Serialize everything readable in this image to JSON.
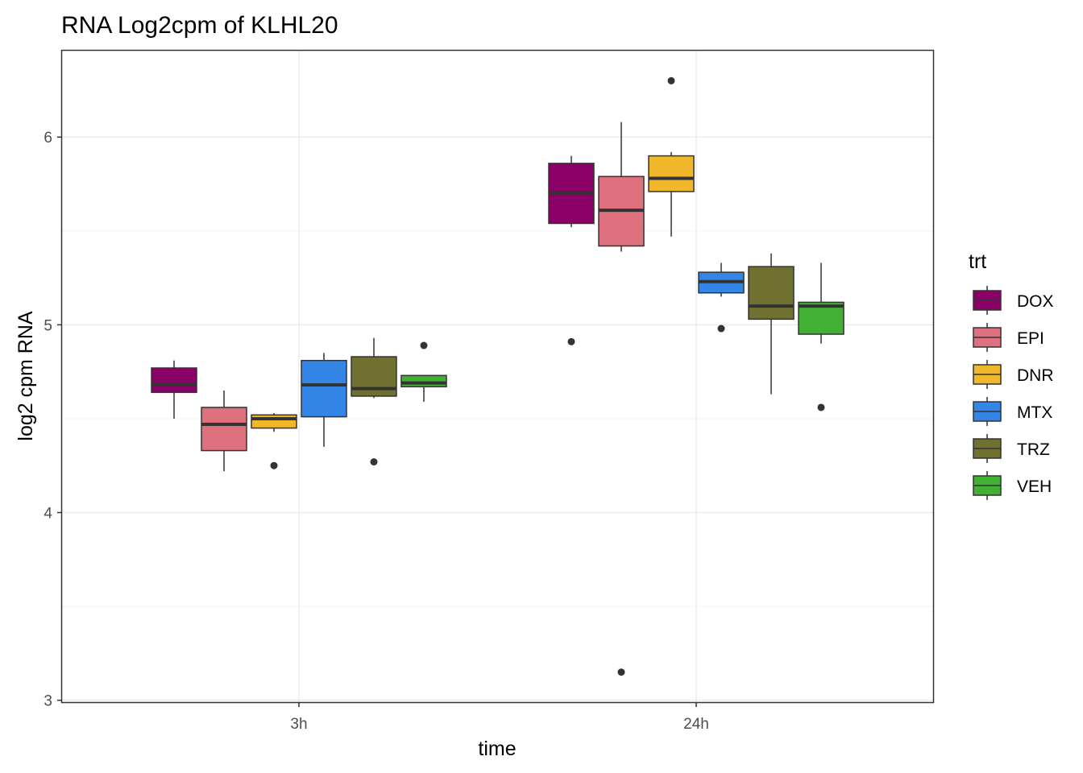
{
  "chart_data": {
    "type": "boxplot",
    "title": "RNA Log2cpm of KLHL20",
    "xlabel": "time",
    "ylabel": "log2 cpm RNA",
    "ylim": [
      2.99,
      6.46
    ],
    "yticks": [
      3,
      4,
      5,
      6
    ],
    "ytick_labels": [
      "3",
      "4",
      "5",
      "6"
    ],
    "categories": [
      "3h",
      "24h"
    ],
    "grid": true,
    "legend": {
      "title": "trt",
      "position": "right"
    },
    "series": [
      {
        "name": "DOX",
        "color": "#8B0066",
        "boxes": [
          {
            "category": "3h",
            "whisker_low": 4.5,
            "q1": 4.64,
            "median": 4.68,
            "q3": 4.77,
            "whisker_high": 4.81,
            "outliers": []
          },
          {
            "category": "24h",
            "whisker_low": 5.52,
            "q1": 5.54,
            "median": 5.7,
            "q3": 5.86,
            "whisker_high": 5.9,
            "outliers": [
              4.91
            ]
          }
        ]
      },
      {
        "name": "EPI",
        "color": "#DF707E",
        "boxes": [
          {
            "category": "3h",
            "whisker_low": 4.22,
            "q1": 4.33,
            "median": 4.47,
            "q3": 4.56,
            "whisker_high": 4.65,
            "outliers": []
          },
          {
            "category": "24h",
            "whisker_low": 5.39,
            "q1": 5.42,
            "median": 5.61,
            "q3": 5.79,
            "whisker_high": 6.08,
            "outliers": [
              3.15
            ]
          }
        ]
      },
      {
        "name": "DNR",
        "color": "#F1B72B",
        "boxes": [
          {
            "category": "3h",
            "whisker_low": 4.43,
            "q1": 4.45,
            "median": 4.5,
            "q3": 4.52,
            "whisker_high": 4.53,
            "outliers": [
              4.25
            ]
          },
          {
            "category": "24h",
            "whisker_low": 5.47,
            "q1": 5.71,
            "median": 5.78,
            "q3": 5.9,
            "whisker_high": 5.92,
            "outliers": [
              6.3
            ]
          }
        ]
      },
      {
        "name": "MTX",
        "color": "#3386E6",
        "boxes": [
          {
            "category": "3h",
            "whisker_low": 4.35,
            "q1": 4.51,
            "median": 4.68,
            "q3": 4.81,
            "whisker_high": 4.85,
            "outliers": []
          },
          {
            "category": "24h",
            "whisker_low": 5.15,
            "q1": 5.17,
            "median": 5.23,
            "q3": 5.28,
            "whisker_high": 5.33,
            "outliers": [
              4.98
            ]
          }
        ]
      },
      {
        "name": "TRZ",
        "color": "#707031",
        "boxes": [
          {
            "category": "3h",
            "whisker_low": 4.61,
            "q1": 4.62,
            "median": 4.66,
            "q3": 4.83,
            "whisker_high": 4.93,
            "outliers": [
              4.27
            ]
          },
          {
            "category": "24h",
            "whisker_low": 4.63,
            "q1": 5.03,
            "median": 5.1,
            "q3": 5.31,
            "whisker_high": 5.38,
            "outliers": []
          }
        ]
      },
      {
        "name": "VEH",
        "color": "#41B033",
        "boxes": [
          {
            "category": "3h",
            "whisker_low": 4.59,
            "q1": 4.67,
            "median": 4.69,
            "q3": 4.73,
            "whisker_high": 4.73,
            "outliers": [
              4.89
            ]
          },
          {
            "category": "24h",
            "whisker_low": 4.9,
            "q1": 4.95,
            "median": 5.1,
            "q3": 5.12,
            "whisker_high": 5.33,
            "outliers": [
              4.56
            ]
          }
        ]
      }
    ]
  }
}
